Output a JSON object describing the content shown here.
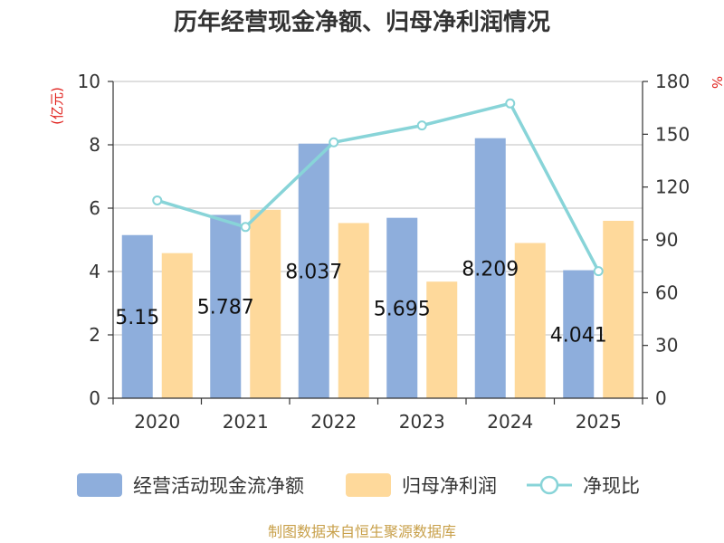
{
  "chart_data": {
    "type": "bar",
    "title": "历年经营现金净额、归母净利润情况",
    "left_unit": "(亿元)",
    "right_unit": "%",
    "categories": [
      "2020",
      "2021",
      "2022",
      "2023",
      "2024",
      "2025"
    ],
    "y_left_ticks": [
      "0",
      "2",
      "4",
      "6",
      "8",
      "10"
    ],
    "y_right_ticks": [
      "0",
      "30",
      "60",
      "90",
      "120",
      "150",
      "180"
    ],
    "ylim_left": [
      0,
      10
    ],
    "ylim_right": [
      0,
      180
    ],
    "grid": true,
    "legend_position": "bottom",
    "series": [
      {
        "name": "经营活动现金流净额",
        "type": "bar",
        "axis": "left",
        "color": "#8eaedc",
        "values": [
          5.15,
          5.787,
          8.037,
          5.695,
          8.209,
          4.041
        ],
        "labels": [
          "5.15",
          "5.787",
          "8.037",
          "5.695",
          "8.209",
          "4.041"
        ]
      },
      {
        "name": "归母净利润",
        "type": "bar",
        "axis": "left",
        "color": "#fed99b",
        "values": [
          4.58,
          5.95,
          5.53,
          3.68,
          4.9,
          5.6
        ]
      },
      {
        "name": "净现比",
        "type": "line",
        "axis": "right",
        "color": "#88d4d8",
        "values": [
          112.4,
          97.3,
          145.4,
          155.0,
          167.5,
          72.2
        ]
      }
    ],
    "source": "制图数据来自恒生聚源数据库",
    "source_color": "#c8a04a",
    "unit_color": "#e0201c"
  }
}
